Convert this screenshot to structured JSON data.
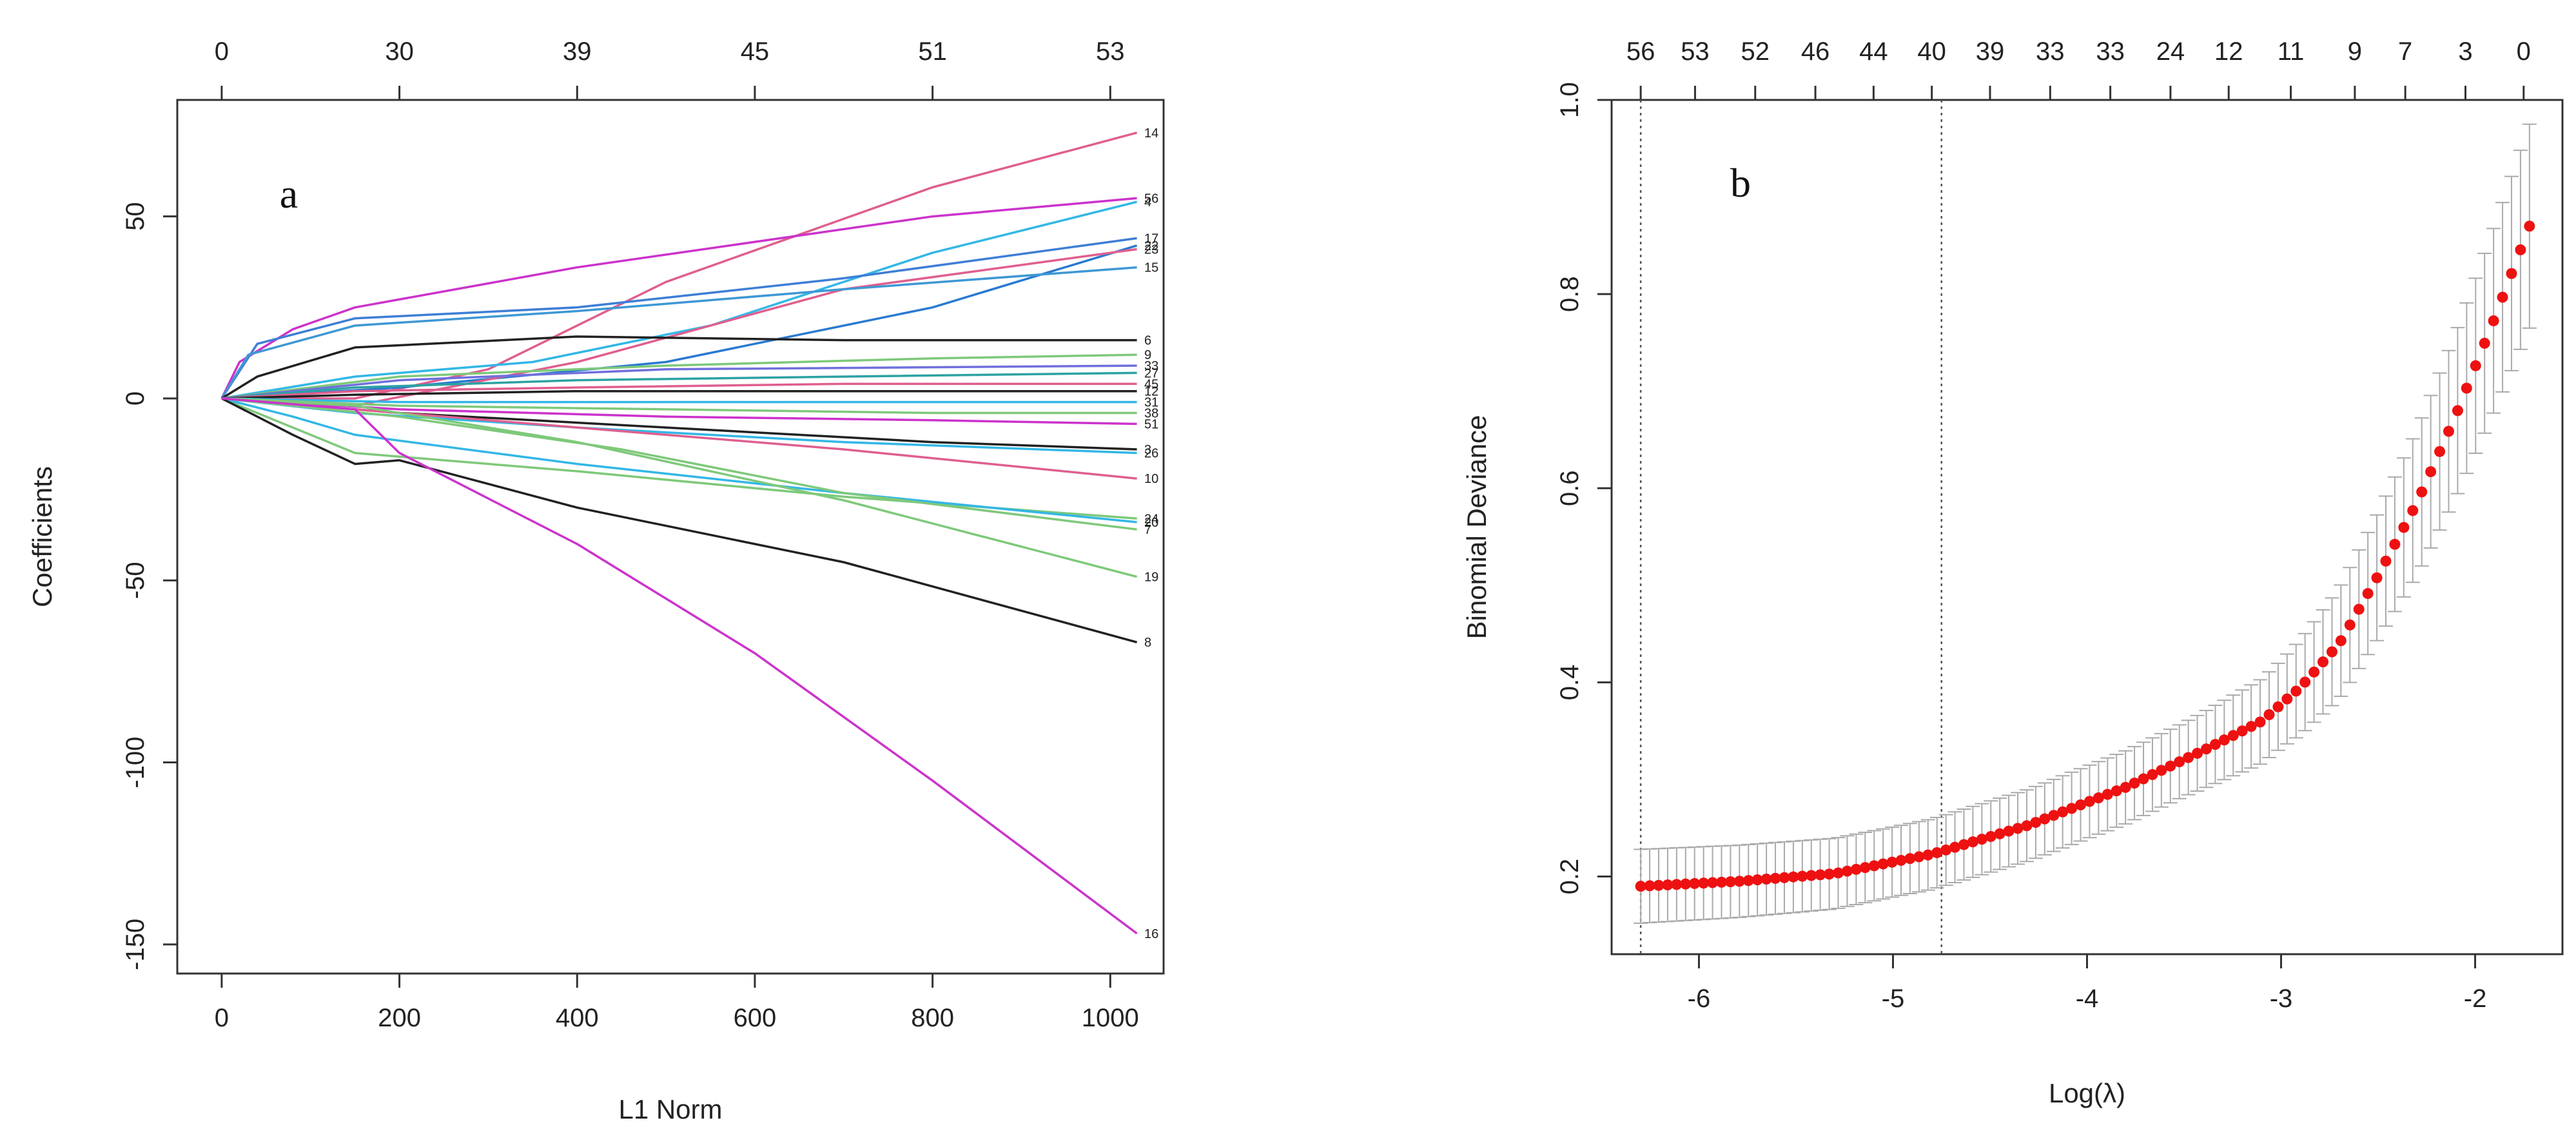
{
  "chart_data": [
    {
      "type": "line",
      "panel_label": "a",
      "xlabel": "L1 Norm",
      "ylabel": "Coefficients",
      "xlim": [
        -50,
        1060
      ],
      "ylim": [
        -158,
        82
      ],
      "x_ticks": [
        "0",
        "200",
        "400",
        "600",
        "800",
        "1000"
      ],
      "x_tick_values": [
        0,
        200,
        400,
        600,
        800,
        1000
      ],
      "y_ticks": [
        "-150",
        "-100",
        "-50",
        "0",
        "50"
      ],
      "y_tick_values": [
        -150,
        -100,
        -50,
        0,
        50
      ],
      "top_ticks": [
        "0",
        "30",
        "39",
        "45",
        "51",
        "53"
      ],
      "top_tick_values": [
        0,
        200,
        400,
        600,
        800,
        1000
      ],
      "grid": false,
      "series": [
        {
          "label": "14",
          "color": "#df5f8f",
          "x": [
            0,
            150,
            300,
            500,
            800,
            1030
          ],
          "y": [
            0,
            0,
            8,
            32,
            58,
            73
          ]
        },
        {
          "label": "56",
          "color": "#cc33cc",
          "x": [
            0,
            20,
            80,
            150,
            400,
            800,
            1030
          ],
          "y": [
            0,
            10,
            19,
            25,
            36,
            50,
            55
          ]
        },
        {
          "label": "4",
          "color": "#33b7e6",
          "x": [
            0,
            150,
            350,
            550,
            800,
            1030
          ],
          "y": [
            0,
            6,
            10,
            20,
            40,
            54
          ]
        },
        {
          "label": "17",
          "color": "#3e7fd6",
          "x": [
            0,
            40,
            150,
            400,
            700,
            1030
          ],
          "y": [
            0,
            15,
            22,
            25,
            33,
            44
          ]
        },
        {
          "label": "22",
          "color": "#2a7ad0",
          "x": [
            0,
            200,
            500,
            800,
            1030
          ],
          "y": [
            0,
            3,
            10,
            25,
            42
          ]
        },
        {
          "label": "23",
          "color": "#df5f8f",
          "x": [
            0,
            150,
            400,
            700,
            1030
          ],
          "y": [
            0,
            -2,
            10,
            30,
            41
          ]
        },
        {
          "label": "15",
          "color": "#3f98d4",
          "x": [
            0,
            30,
            150,
            400,
            700,
            1030
          ],
          "y": [
            0,
            12,
            20,
            24,
            30,
            36
          ]
        },
        {
          "label": "6",
          "color": "#222222",
          "x": [
            0,
            40,
            150,
            400,
            700,
            1030
          ],
          "y": [
            0,
            6,
            14,
            17,
            16,
            16
          ]
        },
        {
          "label": "9",
          "color": "#7ec97a",
          "x": [
            0,
            200,
            500,
            800,
            1030
          ],
          "y": [
            0,
            6,
            9,
            11,
            12
          ]
        },
        {
          "label": "33",
          "color": "#7070dd",
          "x": [
            0,
            200,
            500,
            1030
          ],
          "y": [
            0,
            5,
            8,
            9
          ]
        },
        {
          "label": "27",
          "color": "#2da2a2",
          "x": [
            0,
            150,
            400,
            700,
            1030
          ],
          "y": [
            0,
            3,
            5,
            6,
            7
          ]
        },
        {
          "label": "45",
          "color": "#df5f8f",
          "x": [
            0,
            150,
            400,
            700,
            1030
          ],
          "y": [
            0,
            2,
            3,
            4,
            4
          ]
        },
        {
          "label": "12",
          "color": "#222222",
          "x": [
            0,
            150,
            400,
            700,
            1030
          ],
          "y": [
            0,
            1,
            2,
            2,
            2
          ]
        },
        {
          "label": "31",
          "color": "#33b7e6",
          "x": [
            0,
            200,
            500,
            1030
          ],
          "y": [
            0,
            -1,
            -1,
            -1
          ]
        },
        {
          "label": "38",
          "color": "#7ec97a",
          "x": [
            0,
            200,
            500,
            800,
            1030
          ],
          "y": [
            0,
            -2,
            -3,
            -4,
            -4
          ]
        },
        {
          "label": "51",
          "color": "#cc33cc",
          "x": [
            0,
            200,
            500,
            800,
            1030
          ],
          "y": [
            0,
            -3,
            -5,
            -6,
            -7
          ]
        },
        {
          "label": "3",
          "color": "#222222",
          "x": [
            0,
            200,
            500,
            800,
            1030
          ],
          "y": [
            0,
            -4,
            -8,
            -12,
            -14
          ]
        },
        {
          "label": "26",
          "color": "#33b7e6",
          "x": [
            0,
            150,
            400,
            700,
            1030
          ],
          "y": [
            0,
            -4,
            -8,
            -12,
            -15
          ]
        },
        {
          "label": "10",
          "color": "#df5f8f",
          "x": [
            0,
            150,
            400,
            700,
            1030
          ],
          "y": [
            0,
            -3,
            -8,
            -14,
            -22
          ]
        },
        {
          "label": "24",
          "color": "#7ec97a",
          "x": [
            0,
            80,
            150,
            400,
            700,
            1030
          ],
          "y": [
            0,
            -8,
            -15,
            -20,
            -27,
            -33
          ]
        },
        {
          "label": "20",
          "color": "#33b7e6",
          "x": [
            0,
            80,
            150,
            400,
            700,
            1030
          ],
          "y": [
            0,
            -5,
            -10,
            -18,
            -26,
            -34
          ]
        },
        {
          "label": "7",
          "color": "#7ec97a",
          "x": [
            0,
            200,
            450,
            700,
            1030
          ],
          "y": [
            0,
            -5,
            -14,
            -26,
            -36
          ]
        },
        {
          "label": "19",
          "color": "#7ec97a",
          "x": [
            0,
            150,
            400,
            700,
            1030
          ],
          "y": [
            0,
            -2,
            -12,
            -28,
            -49
          ]
        },
        {
          "label": "8",
          "color": "#222222",
          "x": [
            0,
            80,
            150,
            200,
            400,
            700,
            1030
          ],
          "y": [
            0,
            -10,
            -18,
            -17,
            -30,
            -45,
            -67
          ]
        },
        {
          "label": "16",
          "color": "#cc33cc",
          "x": [
            0,
            150,
            200,
            400,
            600,
            800,
            1030
          ],
          "y": [
            0,
            -3,
            -15,
            -40,
            -70,
            -105,
            -147
          ]
        }
      ]
    },
    {
      "type": "scatter",
      "panel_label": "b",
      "xlabel": "Log(λ)",
      "ylabel": "Binomial Deviance",
      "xlim": [
        -6.45,
        -1.55
      ],
      "ylim": [
        0.12,
        1.0
      ],
      "x_ticks": [
        "-6",
        "-5",
        "-4",
        "-3",
        "-2"
      ],
      "x_tick_values": [
        -6,
        -5,
        -4,
        -3,
        -2
      ],
      "y_ticks": [
        "0.2",
        "0.4",
        "0.6",
        "0.8",
        "1.0"
      ],
      "y_tick_values": [
        0.2,
        0.4,
        0.6,
        0.8,
        1.0
      ],
      "top_ticks": [
        "56",
        "53",
        "52",
        "46",
        "44",
        "40",
        "39",
        "33",
        "33",
        "24",
        "12",
        "11",
        "9",
        "7",
        "3",
        "0"
      ],
      "top_tick_values": [
        -6.3,
        -6.02,
        -5.71,
        -5.4,
        -5.1,
        -4.8,
        -4.5,
        -4.19,
        -3.88,
        -3.57,
        -3.27,
        -2.95,
        -2.62,
        -2.36,
        -2.05,
        -1.75
      ],
      "point_color": "#ee1111",
      "errorbar_color": "#aaaaaa",
      "vlines": [
        -6.3,
        -4.75
      ],
      "x_start": -6.3,
      "x_end": -1.72,
      "n_points": 100,
      "curve_x": [
        -6.3,
        -5.8,
        -5.3,
        -4.8,
        -4.3,
        -3.8,
        -3.4,
        -3.1,
        -2.9,
        -2.7,
        -2.5,
        -2.3,
        -2.1,
        -1.9,
        -1.72
      ],
      "curve_y": [
        0.19,
        0.195,
        0.203,
        0.223,
        0.253,
        0.292,
        0.33,
        0.36,
        0.395,
        0.44,
        0.51,
        0.585,
        0.675,
        0.775,
        0.87
      ],
      "se_x": [
        -6.3,
        -5.0,
        -3.5,
        -3.0,
        -2.5,
        -2.0,
        -1.72
      ],
      "se_y": [
        0.038,
        0.036,
        0.038,
        0.045,
        0.065,
        0.09,
        0.105
      ],
      "grid": false
    }
  ]
}
